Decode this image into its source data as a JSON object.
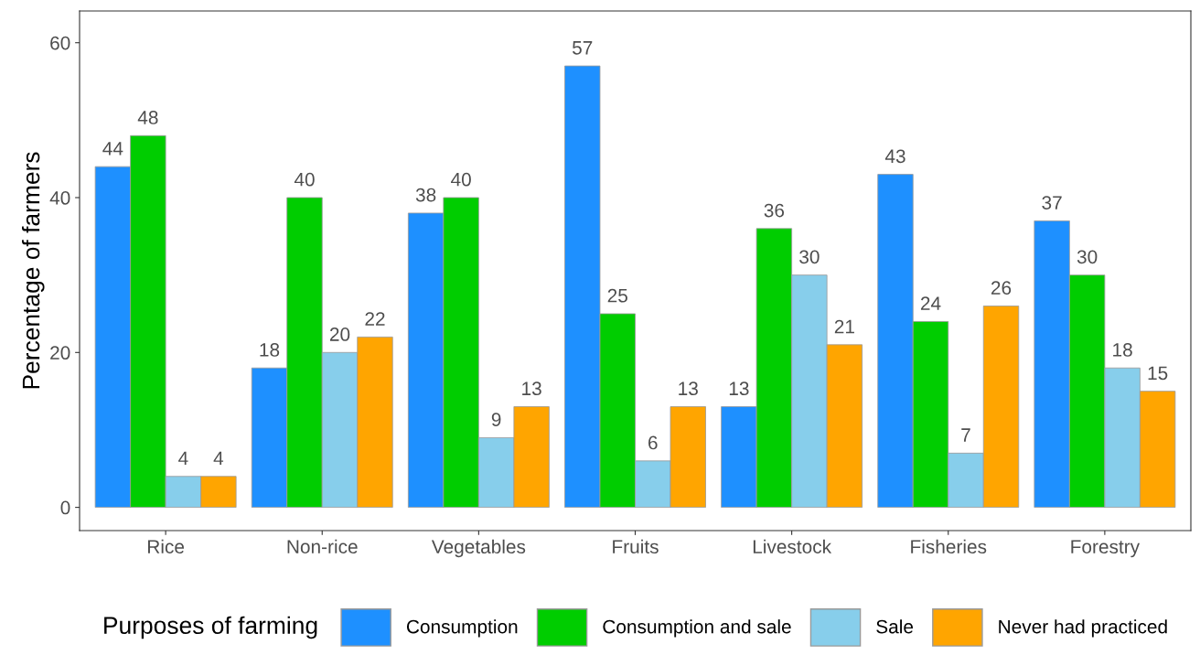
{
  "chart_data": {
    "type": "bar",
    "ylabel": "Percentage of farmers",
    "legend_title": "Purposes of farming",
    "categories": [
      "Rice",
      "Non-rice",
      "Vegetables",
      "Fruits",
      "Livestock",
      "Fisheries",
      "Forestry"
    ],
    "series": [
      {
        "name": "Consumption",
        "color": "#1e90ff",
        "values": [
          44,
          18,
          38,
          57,
          13,
          43,
          37
        ]
      },
      {
        "name": "Consumption and sale",
        "color": "#00cd00",
        "values": [
          48,
          40,
          40,
          25,
          36,
          24,
          30
        ]
      },
      {
        "name": "Sale",
        "color": "#87ceeb",
        "values": [
          4,
          20,
          9,
          6,
          30,
          7,
          18
        ]
      },
      {
        "name": "Never had practiced",
        "color": "#ffa500",
        "values": [
          4,
          22,
          13,
          13,
          21,
          26,
          15
        ]
      }
    ],
    "ylim": [
      -3,
      64.1
    ],
    "yticks": [
      0,
      20,
      40,
      60
    ],
    "grid": false,
    "legend": "bottom",
    "data_labels": true
  }
}
